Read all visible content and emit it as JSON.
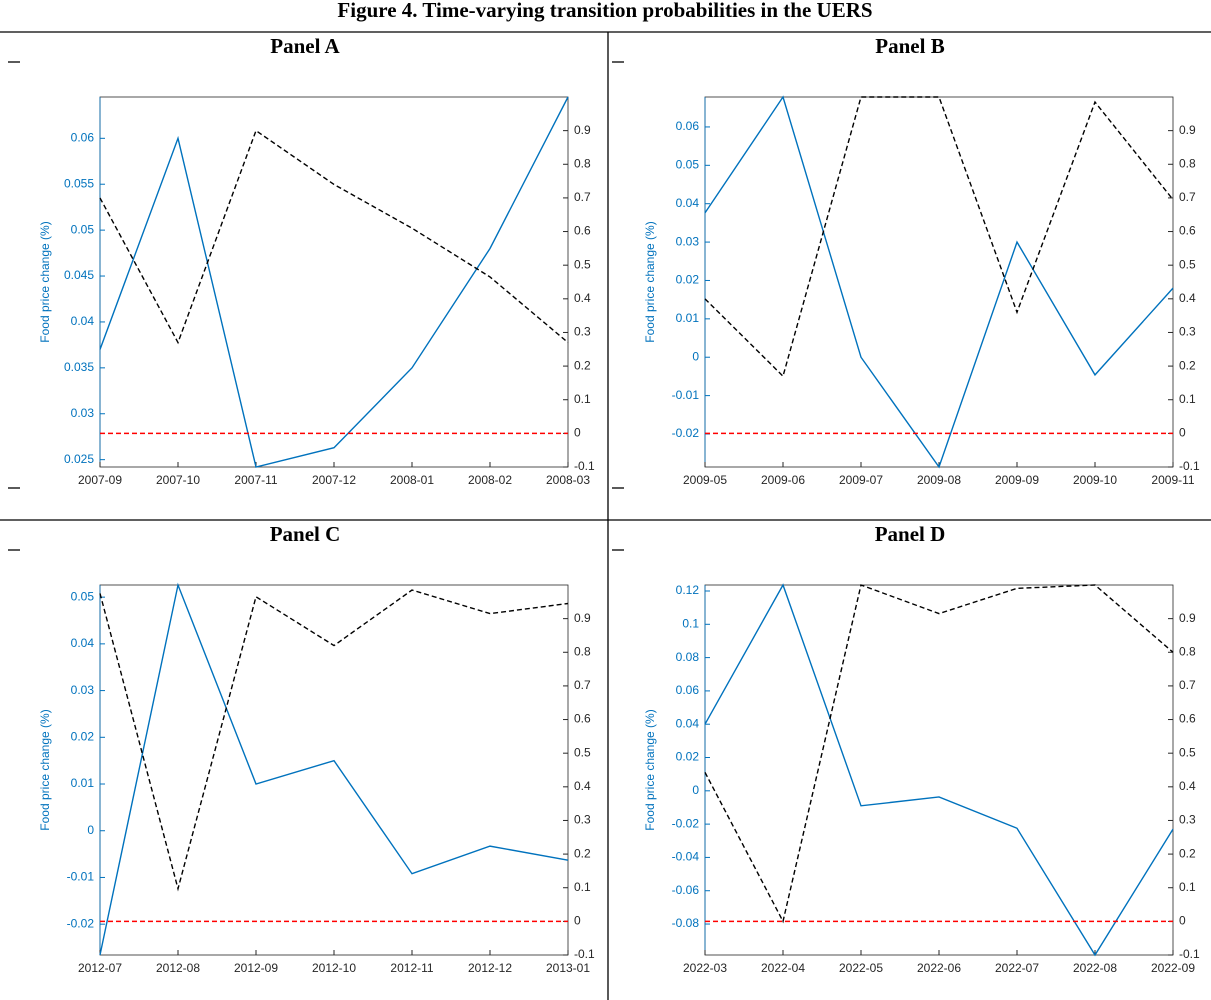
{
  "title": "Figure 4. Time-varying transition probabilities in the UERS",
  "chart_data": [
    {
      "type": "line",
      "title": "Panel A",
      "ylabel": "Food price change (%)",
      "categories": [
        "2007-09",
        "2007-10",
        "2007-11",
        "2007-12",
        "2008-01",
        "2008-02",
        "2008-03"
      ],
      "ylim": [
        0.0242,
        0.0645
      ],
      "yticks": [
        0.025,
        0.03,
        0.035,
        0.04,
        0.045,
        0.05,
        0.055,
        0.06
      ],
      "y2lim": [
        -0.1,
        1.0
      ],
      "y2ticks": [
        -0.1,
        0,
        0.1,
        0.2,
        0.3,
        0.4,
        0.5,
        0.6,
        0.7,
        0.8,
        0.9
      ],
      "series": [
        {
          "color": "#0072bd",
          "values": [
            0.037,
            0.06,
            0.0242,
            0.0263,
            0.035,
            0.048,
            0.0645
          ]
        },
        {
          "color": "#000000",
          "axis": "y2",
          "dash": "dashed",
          "values": [
            0.7,
            0.27,
            0.9,
            0.74,
            0.61,
            0.465,
            0.27
          ]
        },
        {
          "color": "#ff0000",
          "axis": "y2",
          "dash": "dashed",
          "values": [
            0,
            0,
            0,
            0,
            0,
            0,
            0
          ]
        }
      ]
    },
    {
      "type": "line",
      "title": "Panel B",
      "ylabel": "Food price change (%)",
      "categories": [
        "2009-05",
        "2009-06",
        "2009-07",
        "2009-08",
        "2009-09",
        "2009-10",
        "2009-11"
      ],
      "ylim": [
        -0.0286,
        0.0678
      ],
      "yticks": [
        -0.02,
        -0.01,
        0,
        0.01,
        0.02,
        0.03,
        0.04,
        0.05,
        0.06
      ],
      "y2lim": [
        -0.1,
        1.0
      ],
      "y2ticks": [
        -0.1,
        0,
        0.1,
        0.2,
        0.3,
        0.4,
        0.5,
        0.6,
        0.7,
        0.8,
        0.9
      ],
      "series": [
        {
          "color": "#0072bd",
          "values": [
            0.0376,
            0.0678,
            0,
            -0.0286,
            0.03,
            -0.0046,
            0.018
          ]
        },
        {
          "color": "#000000",
          "axis": "y2",
          "dash": "dashed",
          "values": [
            0.4,
            0.17,
            1.0,
            1.0,
            0.36,
            0.985,
            0.695
          ]
        },
        {
          "color": "#ff0000",
          "axis": "y2",
          "dash": "dashed",
          "values": [
            0,
            0,
            0,
            0,
            0,
            0,
            0
          ]
        }
      ]
    },
    {
      "type": "line",
      "title": "Panel C",
      "ylabel": "Food price change (%)",
      "categories": [
        "2012-07",
        "2012-08",
        "2012-09",
        "2012-10",
        "2012-11",
        "2012-12",
        "2013-01"
      ],
      "ylim": [
        -0.0266,
        0.0526
      ],
      "yticks": [
        -0.02,
        -0.01,
        0,
        0.01,
        0.02,
        0.03,
        0.04,
        0.05
      ],
      "y2lim": [
        -0.1,
        1.0
      ],
      "y2ticks": [
        -0.1,
        0,
        0.1,
        0.2,
        0.3,
        0.4,
        0.5,
        0.6,
        0.7,
        0.8,
        0.9
      ],
      "series": [
        {
          "color": "#0072bd",
          "values": [
            -0.0266,
            0.0526,
            0.01,
            0.015,
            -0.0092,
            -0.0033,
            -0.0063
          ]
        },
        {
          "color": "#000000",
          "axis": "y2",
          "dash": "dashed",
          "values": [
            0.975,
            0.097,
            0.965,
            0.82,
            0.985,
            0.915,
            0.945
          ]
        },
        {
          "color": "#ff0000",
          "axis": "y2",
          "dash": "dashed",
          "values": [
            0,
            0,
            0,
            0,
            0,
            0,
            0
          ]
        }
      ]
    },
    {
      "type": "line",
      "title": "Panel D",
      "ylabel": "Food price change (%)",
      "categories": [
        "2022-03",
        "2022-04",
        "2022-05",
        "2022-06",
        "2022-07",
        "2022-08",
        "2022-09"
      ],
      "ylim": [
        -0.0986,
        0.1236
      ],
      "yticks": [
        -0.08,
        -0.06,
        -0.04,
        -0.02,
        0,
        0.02,
        0.04,
        0.06,
        0.08,
        0.1,
        0.12
      ],
      "y2lim": [
        -0.1,
        1.0
      ],
      "y2ticks": [
        -0.1,
        0,
        0.1,
        0.2,
        0.3,
        0.4,
        0.5,
        0.6,
        0.7,
        0.8,
        0.9
      ],
      "series": [
        {
          "color": "#0072bd",
          "values": [
            0.04,
            0.1236,
            -0.009,
            -0.0037,
            -0.0225,
            -0.0986,
            -0.023
          ]
        },
        {
          "color": "#000000",
          "axis": "y2",
          "dash": "dashed",
          "values": [
            0.443,
            0.0,
            1.0,
            0.915,
            0.99,
            1.0,
            0.8
          ]
        },
        {
          "color": "#ff0000",
          "axis": "y2",
          "dash": "dashed",
          "values": [
            0,
            0,
            0,
            0,
            0,
            0,
            0
          ]
        }
      ]
    }
  ]
}
